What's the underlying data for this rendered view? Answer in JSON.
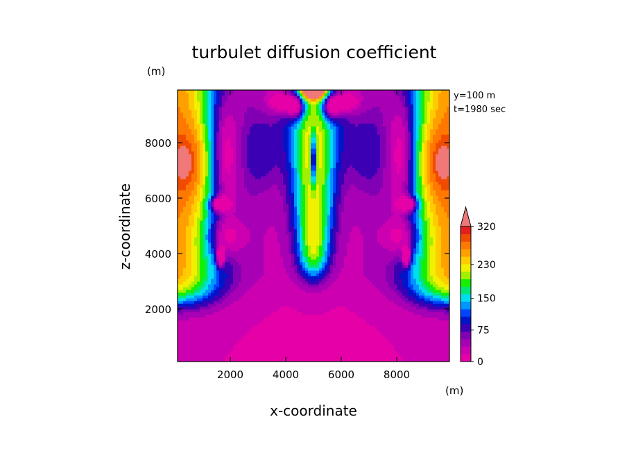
{
  "chart_data": {
    "type": "heatmap",
    "title": "turbulet diffusion coefficient",
    "xlabel": "x-coordinate",
    "ylabel": "z-coordinate",
    "x_unit": "(m)",
    "y_unit": "(m)",
    "xlim": [
      100,
      9900
    ],
    "ylim": [
      100,
      9900
    ],
    "x_ticks": [
      2000,
      4000,
      6000,
      8000
    ],
    "y_ticks": [
      2000,
      4000,
      6000,
      8000
    ],
    "annotations": [
      "y=100 m",
      "t=1980 sec"
    ],
    "colorbar": {
      "ticks": [
        0,
        75,
        150,
        230,
        320
      ],
      "levels": [
        0,
        20,
        40,
        60,
        75,
        95,
        115,
        130,
        150,
        170,
        190,
        210,
        230,
        250,
        270,
        290,
        310,
        320
      ],
      "colors": [
        "#e600a8",
        "#cc00b0",
        "#a800b4",
        "#8200b4",
        "#3c00b4",
        "#0014c8",
        "#0046ff",
        "#0096ff",
        "#00dcf0",
        "#00e678",
        "#14f000",
        "#a0f000",
        "#f0f000",
        "#ffcc00",
        "#ffa000",
        "#ff7800",
        "#f04b00",
        "#e61e1e"
      ],
      "extend_color": "#f07878",
      "extend": "max"
    }
  }
}
